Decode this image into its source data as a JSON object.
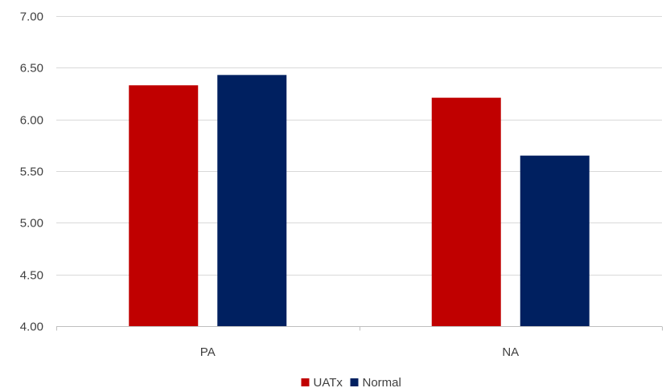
{
  "chart_data": {
    "type": "bar",
    "categories": [
      "PA",
      "NA"
    ],
    "series": [
      {
        "name": "UATx",
        "color": "#C00000",
        "values": [
          6.33,
          6.21
        ]
      },
      {
        "name": "Normal",
        "color": "#002060",
        "values": [
          6.43,
          5.65
        ]
      }
    ],
    "ylim": [
      4.0,
      7.0
    ],
    "yticks": [
      "4.00",
      "4.50",
      "5.00",
      "5.50",
      "6.00",
      "6.50",
      "7.00"
    ],
    "grid": true,
    "legend_position": "bottom"
  }
}
